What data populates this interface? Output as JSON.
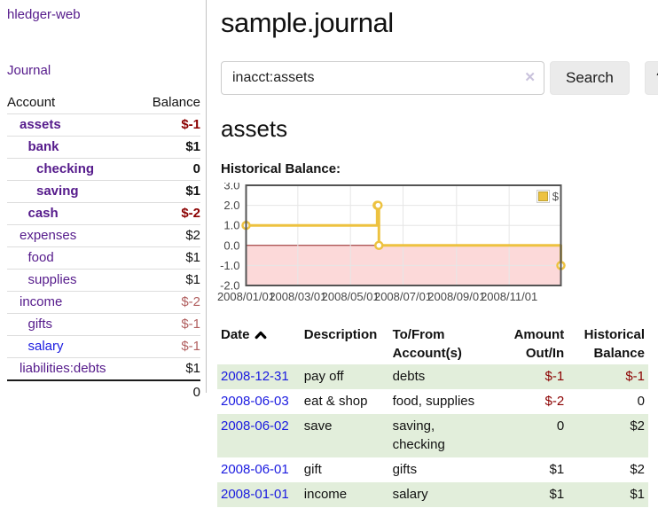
{
  "sidebar": {
    "app_title": "hledger-web",
    "journal_label": "Journal",
    "accounts_header": {
      "account": "Account",
      "balance": "Balance"
    },
    "accounts": [
      {
        "name": "assets",
        "indent": 1,
        "bold": true,
        "balance": "$-1"
      },
      {
        "name": "bank",
        "indent": 2,
        "bold": true,
        "balance": "$1"
      },
      {
        "name": "checking",
        "indent": 3,
        "bold": true,
        "balance": "0"
      },
      {
        "name": "saving",
        "indent": 3,
        "bold": true,
        "balance": "$1"
      },
      {
        "name": "cash",
        "indent": 2,
        "bold": true,
        "balance": "$-2"
      },
      {
        "name": "expenses",
        "indent": 1,
        "bold": false,
        "balance": "$2"
      },
      {
        "name": "food",
        "indent": 2,
        "bold": false,
        "balance": "$1"
      },
      {
        "name": "supplies",
        "indent": 2,
        "bold": false,
        "balance": "$1"
      },
      {
        "name": "income",
        "indent": 1,
        "bold": false,
        "balance": "$-2"
      },
      {
        "name": "gifts",
        "indent": 2,
        "bold": false,
        "balance": "$-1"
      },
      {
        "name": "salary",
        "indent": 2,
        "bold": false,
        "balance": "$-1",
        "blue": true
      },
      {
        "name": "liabilities:debts",
        "indent": 1,
        "bold": false,
        "balance": "$1"
      }
    ],
    "total": "0"
  },
  "header": {
    "title": "sample.journal"
  },
  "search": {
    "value": "inacct:assets",
    "clear_icon": "✕",
    "button_label": "Search",
    "help_label": "?"
  },
  "main": {
    "account_heading": "assets",
    "chart_label": "Historical Balance:"
  },
  "chart_data": {
    "type": "line",
    "style": "step",
    "title": "Historical Balance:",
    "series": [
      {
        "name": "$",
        "color": "#edc240",
        "points": [
          [
            "2008-01-01",
            1
          ],
          [
            "2008-06-01",
            2
          ],
          [
            "2008-06-02",
            2
          ],
          [
            "2008-06-03",
            0
          ],
          [
            "2008-12-31",
            -1
          ]
        ]
      }
    ],
    "x_range": [
      "2008-01-01",
      "2008-12-31"
    ],
    "x_ticks": [
      {
        "label": "2008/01/01",
        "date": "2008-01-01"
      },
      {
        "label": "2008/03/01",
        "date": "2008-03-01"
      },
      {
        "label": "2008/05/01",
        "date": "2008-05-01"
      },
      {
        "label": "2008/07/01",
        "date": "2008-07-01"
      },
      {
        "label": "2008/09/01",
        "date": "2008-09-01"
      },
      {
        "label": "2008/11/01",
        "date": "2008-11-01"
      }
    ],
    "y_ticks": [
      {
        "label": "3.0",
        "value": 3
      },
      {
        "label": "2.0",
        "value": 2
      },
      {
        "label": "1.0",
        "value": 1
      },
      {
        "label": "0.0",
        "value": 0
      },
      {
        "label": "-1.0",
        "value": -1
      },
      {
        "label": "-2.0",
        "value": -2
      }
    ],
    "ylim": [
      -2,
      3
    ],
    "grid": true,
    "legend": {
      "label": "$",
      "position": "top-right"
    },
    "negative_region_color": "#fcd9d9",
    "zero_line_color": "#8f1d1d",
    "border_color": "#545454",
    "gridline_color": "#e6e6e6"
  },
  "register": {
    "columns": [
      {
        "line1": "Date",
        "line2": ""
      },
      {
        "line1": "Description",
        "line2": ""
      },
      {
        "line1": "To/From",
        "line2": "Account(s)"
      },
      {
        "line1": "Amount",
        "line2": "Out/In"
      },
      {
        "line1": "Historical",
        "line2": "Balance"
      }
    ],
    "rows": [
      {
        "date": "2008-12-31",
        "description": "pay off",
        "accounts": "debts",
        "amount": "$-1",
        "balance": "$-1"
      },
      {
        "date": "2008-06-03",
        "description": "eat & shop",
        "accounts": "food, supplies",
        "amount": "$-2",
        "balance": "0"
      },
      {
        "date": "2008-06-02",
        "description": "save",
        "accounts": "saving, checking",
        "amount": "0",
        "balance": "$2"
      },
      {
        "date": "2008-06-01",
        "description": "gift",
        "accounts": "gifts",
        "amount": "$1",
        "balance": "$2"
      },
      {
        "date": "2008-01-01",
        "description": "income",
        "accounts": "salary",
        "amount": "$1",
        "balance": "$1"
      }
    ]
  }
}
